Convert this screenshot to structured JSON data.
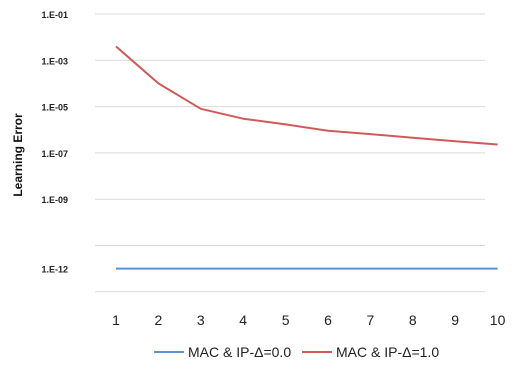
{
  "chart_data": {
    "type": "line",
    "title": "",
    "xlabel": "",
    "ylabel": "Learning Error",
    "y_scale": "log",
    "ylim": [
      1e-13,
      1
    ],
    "x": [
      1,
      2,
      3,
      4,
      5,
      6,
      7,
      8,
      9,
      10
    ],
    "x_tick_labels": [
      "1",
      "2",
      "3",
      "4",
      "5",
      "6",
      "7",
      "8",
      "9",
      "10"
    ],
    "y_ticks": [
      {
        "value": 0.1,
        "label": "1.E-01"
      },
      {
        "value": 0.001,
        "label": "1.E-03"
      },
      {
        "value": 1e-05,
        "label": "1.E-05"
      },
      {
        "value": 1e-07,
        "label": "1.E-07"
      },
      {
        "value": 1e-09,
        "label": "1.E-09"
      },
      {
        "value": 1e-12,
        "label": "1.E-12"
      }
    ],
    "gridlines": [
      0.1,
      0.001,
      1e-05,
      1e-07,
      1e-09,
      1e-11,
      1e-13
    ],
    "grid": true,
    "legend_position": "bottom",
    "series": [
      {
        "name": "MAC & IP-Δ=0.0",
        "color": "#5b8fd6",
        "values": [
          1e-12,
          1e-12,
          1e-12,
          1e-12,
          1e-12,
          1e-12,
          1e-12,
          1e-12,
          1e-12,
          1e-12
        ]
      },
      {
        "name": "MAC & IP-Δ=1.0",
        "color": "#d05a5a",
        "values": [
          0.004,
          0.0001,
          8e-06,
          3e-06,
          1.7e-06,
          9e-07,
          6.5e-07,
          4.5e-07,
          3.2e-07,
          2.3e-07
        ]
      }
    ]
  }
}
